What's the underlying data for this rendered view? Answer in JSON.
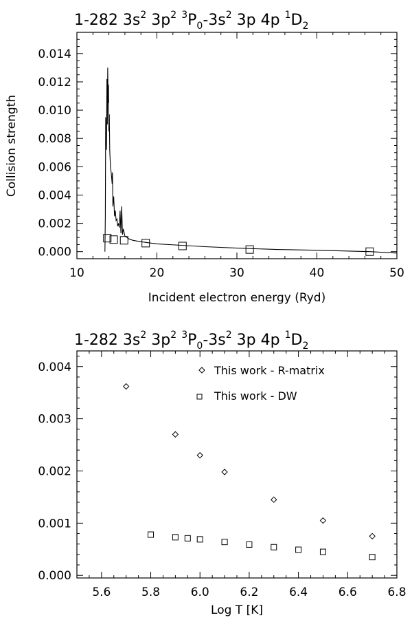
{
  "chart_data": [
    {
      "type": "line",
      "title": {
        "base": "1-282 3s",
        "sup1": "2",
        "mid1": " 3p",
        "sup2": "2",
        "mid2": " ",
        "sup3": "3",
        "mid3": "P",
        "sub1": "0",
        "mid4": "-3s",
        "sup4": "2",
        "mid5": " 3p 4p ",
        "sup5": "1",
        "mid6": "D",
        "sub2": "2"
      },
      "xlabel": "Incident electron energy (Ryd)",
      "ylabel": "Collision strength",
      "xlim": [
        10,
        50
      ],
      "ylim": [
        -0.0005,
        0.0155
      ],
      "xticks": [
        "10",
        "20",
        "30",
        "40",
        "50"
      ],
      "yticks": [
        "0.000",
        "0.002",
        "0.004",
        "0.006",
        "0.008",
        "0.010",
        "0.012",
        "0.014"
      ],
      "series": [
        {
          "marker": "line",
          "x": [
            13.5,
            13.55,
            13.6,
            13.7,
            13.75,
            13.8,
            13.85,
            13.9,
            13.95,
            14.0,
            14.05,
            14.1,
            14.15,
            14.2,
            14.3,
            14.4,
            14.45,
            14.5,
            14.6,
            14.7,
            14.8,
            14.9,
            15.0,
            15.1,
            15.2,
            15.3,
            15.4,
            15.5,
            15.6,
            15.7,
            15.8,
            16.0,
            16.5,
            17.0,
            18.0,
            20.0,
            23.0,
            26.0,
            30.0,
            35.0,
            40.0,
            46.6,
            50.0
          ],
          "y": [
            0.0,
            0.0025,
            0.0095,
            0.0072,
            0.0122,
            0.009,
            0.013,
            0.0105,
            0.0118,
            0.0085,
            0.0097,
            0.0072,
            0.0066,
            0.006,
            0.0055,
            0.0048,
            0.0056,
            0.0032,
            0.0039,
            0.0025,
            0.0029,
            0.0022,
            0.0023,
            0.0018,
            0.002,
            0.0017,
            0.0029,
            0.0013,
            0.0032,
            0.0012,
            0.0016,
            0.0011,
            0.0009,
            0.0008,
            0.0007,
            0.00055,
            0.00045,
            0.00035,
            0.00025,
            0.00015,
            0.0001,
            0.0,
            -0.0001
          ]
        },
        {
          "marker": "square",
          "x": [
            13.8,
            14.6,
            15.9,
            18.6,
            23.2,
            31.6,
            46.6
          ],
          "y": [
            0.00095,
            0.00085,
            0.0008,
            0.0006,
            0.0004,
            0.00015,
            0.0
          ]
        }
      ]
    },
    {
      "type": "scatter",
      "title": {
        "base": "1-282 3s",
        "sup1": "2",
        "mid1": " 3p",
        "sup2": "2",
        "mid2": " ",
        "sup3": "3",
        "mid3": "P",
        "sub1": "0",
        "mid4": "-3s",
        "sup4": "2",
        "mid5": " 3p 4p ",
        "sup5": "1",
        "mid6": "D",
        "sub2": "2"
      },
      "xlabel": "Log T [K]",
      "ylabel": "",
      "xlim": [
        5.5,
        6.8
      ],
      "ylim": [
        -5e-05,
        0.0043
      ],
      "xticks": [
        "5.6",
        "5.8",
        "6.0",
        "6.2",
        "6.4",
        "6.6",
        "6.8"
      ],
      "yticks": [
        "0.000",
        "0.001",
        "0.002",
        "0.003",
        "0.004"
      ],
      "legend": [
        "This work - R-matrix",
        "This work - DW"
      ],
      "legend_position": "top-right",
      "series": [
        {
          "name": "This work - R-matrix",
          "marker": "diamond",
          "x": [
            5.7,
            5.9,
            6.0,
            6.1,
            6.3,
            6.5,
            6.7
          ],
          "y": [
            0.00362,
            0.0027,
            0.0023,
            0.00198,
            0.00145,
            0.00105,
            0.00075
          ]
        },
        {
          "name": "This work - DW",
          "marker": "square",
          "x": [
            5.8,
            5.9,
            5.95,
            6.0,
            6.1,
            6.2,
            6.3,
            6.4,
            6.5,
            6.7
          ],
          "y": [
            0.00078,
            0.00073,
            0.00071,
            0.00069,
            0.00064,
            0.00059,
            0.00054,
            0.00049,
            0.00045,
            0.00035
          ]
        }
      ]
    }
  ]
}
